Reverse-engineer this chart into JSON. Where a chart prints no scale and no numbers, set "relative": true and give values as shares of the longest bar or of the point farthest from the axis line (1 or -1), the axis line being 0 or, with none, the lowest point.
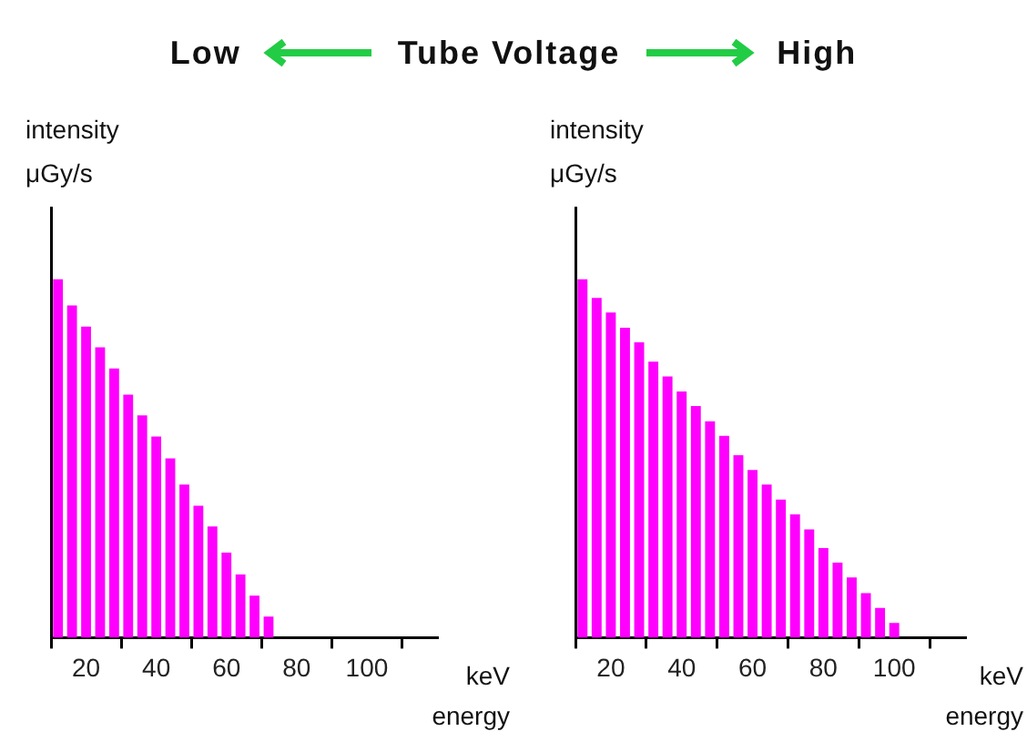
{
  "chart_data": [
    {
      "type": "bar",
      "title": "Low",
      "annotations": [
        "Tube Voltage"
      ],
      "xlabel": "keV energy",
      "ylabel": "intensity μGy/s",
      "relative": true,
      "color": "#ff00ff",
      "xlim": [
        10,
        120
      ],
      "xticks": [
        20,
        40,
        60,
        80,
        100
      ],
      "x": [
        12,
        16,
        20,
        24,
        28,
        32,
        36,
        40,
        44,
        48,
        52,
        56,
        60,
        64,
        68,
        72
      ],
      "values": [
        1,
        0.927,
        0.868,
        0.81,
        0.751,
        0.678,
        0.62,
        0.561,
        0.5,
        0.427,
        0.368,
        0.31,
        0.237,
        0.176,
        0.117,
        0.059
      ]
    },
    {
      "type": "bar",
      "title": "High",
      "xlabel": "keV energy",
      "ylabel": "intensity μGy/s",
      "relative": true,
      "color": "#ff00ff",
      "xlim": [
        10,
        120
      ],
      "xticks": [
        20,
        40,
        60,
        80,
        100
      ],
      "x": [
        12,
        16,
        20,
        24,
        28,
        32,
        36,
        40,
        44,
        48,
        52,
        56,
        60,
        64,
        68,
        72,
        76,
        80,
        84,
        88,
        92,
        96,
        100
      ],
      "values": [
        1,
        0.948,
        0.907,
        0.865,
        0.824,
        0.77,
        0.729,
        0.687,
        0.646,
        0.604,
        0.563,
        0.509,
        0.468,
        0.427,
        0.385,
        0.344,
        0.302,
        0.25,
        0.209,
        0.168,
        0.124,
        0.083,
        0.041
      ]
    }
  ]
}
